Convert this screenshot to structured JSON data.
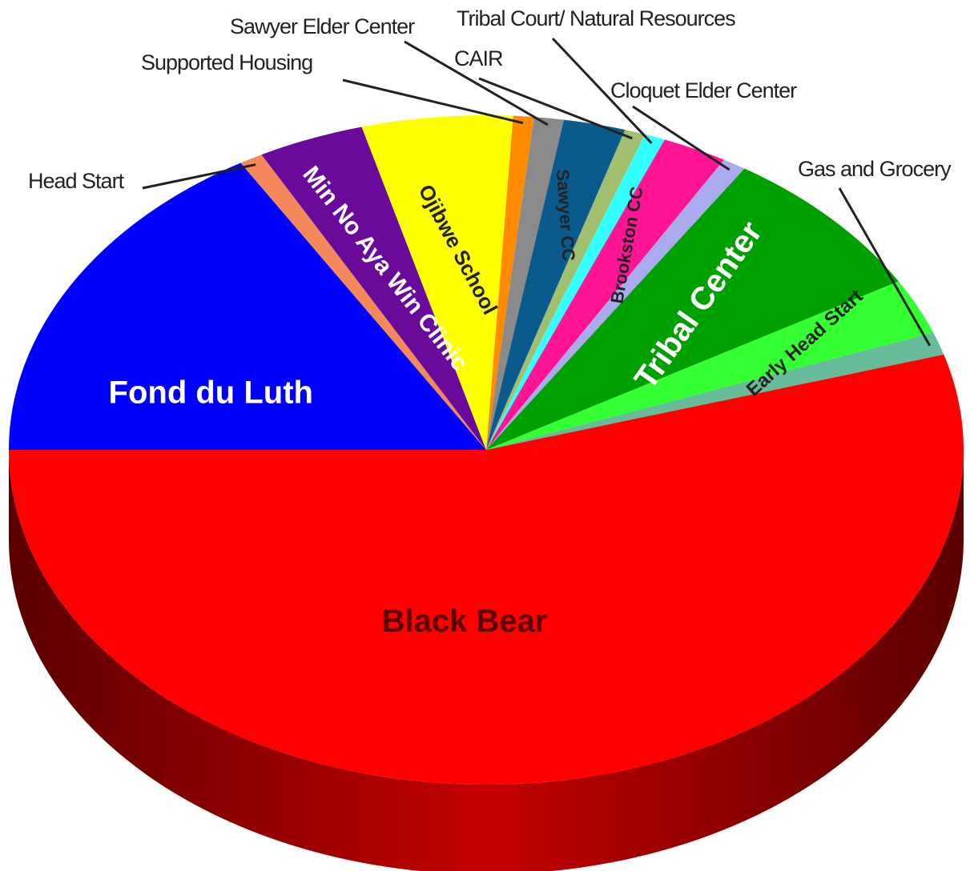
{
  "chart_data": {
    "type": "pie",
    "style": "3d-perspective",
    "title": "",
    "start_angle_deg": 180,
    "direction": "clockwise",
    "slices": [
      {
        "name": "Fond du Luth",
        "value": 16.4,
        "color": "#0000ff",
        "label_style": "inner",
        "text_color": "#ffffff"
      },
      {
        "name": "Head Start",
        "value": 0.8,
        "color": "#f5885a",
        "label_style": "external"
      },
      {
        "name": "Min No Aya Win Clinic",
        "value": 3.6,
        "color": "#6a0a9a",
        "label_style": "inner",
        "text_color": "#ffffff"
      },
      {
        "name": "Ojibwe School",
        "value": 5.1,
        "color": "#ffff00",
        "label_style": "inner",
        "text_color": "#222222"
      },
      {
        "name": "Supported Housing",
        "value": 0.7,
        "color": "#ff8c00",
        "label_style": "external"
      },
      {
        "name": "Sawyer Elder Center",
        "value": 1.0,
        "color": "#8a8a8a",
        "label_style": "external"
      },
      {
        "name": "Sawyer CC",
        "value": 2.1,
        "color": "#0a5a8c",
        "label_style": "inner",
        "text_color": "#222222"
      },
      {
        "name": "CAIR",
        "value": 0.7,
        "color": "#a0c070",
        "label_style": "external"
      },
      {
        "name": "Tribal Court/ Natural Resources",
        "value": 0.7,
        "color": "#33ffff",
        "label_style": "external"
      },
      {
        "name": "Brookston CC",
        "value": 2.2,
        "color": "#ff1493",
        "label_style": "inner",
        "text_color": "#222222"
      },
      {
        "name": "Cloquet Elder Center",
        "value": 0.8,
        "color": "#aaaaee",
        "label_style": "external"
      },
      {
        "name": "Tribal Center",
        "value": 7.5,
        "color": "#00a000",
        "label_style": "inner",
        "text_color": "#ffffff"
      },
      {
        "name": "Early Head Start",
        "value": 2.7,
        "color": "#33ff33",
        "label_style": "inner",
        "text_color": "#222222"
      },
      {
        "name": "Gas and Grocery",
        "value": 1.1,
        "color": "#66bb99",
        "label_style": "external"
      },
      {
        "name": "Black Bear",
        "value": 54.6,
        "color": "#ff0000",
        "label_style": "inner",
        "text_color": "#5a0000"
      }
    ]
  }
}
